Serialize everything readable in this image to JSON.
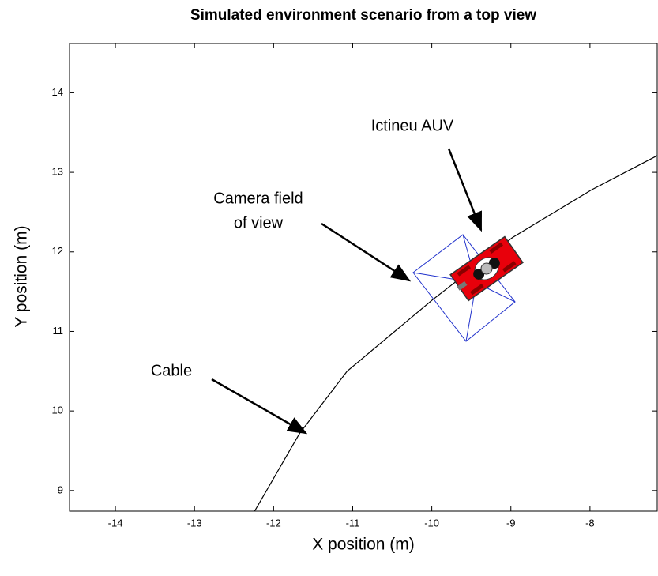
{
  "chart_data": {
    "type": "line",
    "title": "Simulated environment scenario from a top view",
    "x_label": "X position (m)",
    "y_label": "Y position (m)",
    "xlim": [
      -14.58,
      -7.15
    ],
    "ylim": [
      8.74,
      14.62
    ],
    "xticks": [
      -14,
      -13,
      -12,
      -11,
      -10,
      -9,
      -8
    ],
    "yticks": [
      9,
      10,
      11,
      12,
      13,
      14
    ],
    "series": [
      {
        "name": "Cable",
        "color": "#000000",
        "x": [
          -12.24,
          -11.67,
          -11.07,
          -10.0,
          -8.98,
          -7.98,
          -7.15
        ],
        "values": [
          8.74,
          9.72,
          10.5,
          11.39,
          12.18,
          12.78,
          13.21
        ]
      }
    ],
    "annotations": [
      "Ictineu  AUV",
      "Camera field",
      "of view",
      "Cable"
    ]
  }
}
